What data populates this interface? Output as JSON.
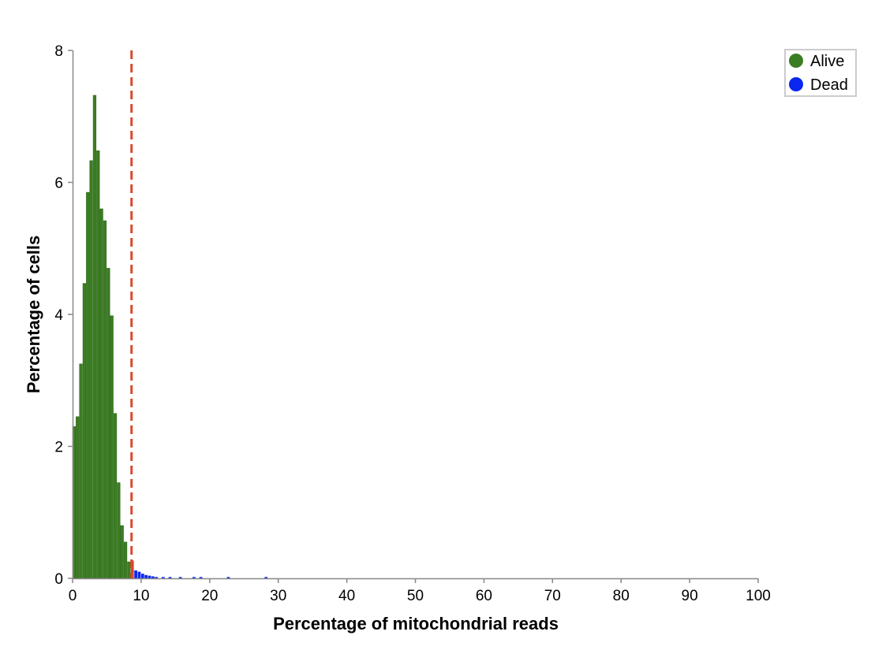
{
  "chart_data": {
    "type": "bar",
    "xlabel": "Percentage of mitochondrial reads",
    "ylabel": "Percentage of cells",
    "xlim": [
      0,
      100
    ],
    "ylim": [
      0,
      8
    ],
    "x_ticks": [
      "0",
      "10",
      "20",
      "30",
      "40",
      "50",
      "60",
      "70",
      "80",
      "90",
      "100"
    ],
    "y_ticks": [
      "0",
      "2",
      "4",
      "6",
      "8"
    ],
    "bin_width": 0.5,
    "threshold": 8.6,
    "grid": false,
    "legend_position": "top-right",
    "series": [
      {
        "name": "Alive",
        "color": "#3b7d23",
        "x": [
          0,
          0.5,
          1,
          1.5,
          2,
          2.5,
          3,
          3.5,
          4,
          4.5,
          5,
          5.5,
          6,
          6.5,
          7,
          7.5,
          8
        ],
        "values": [
          2.3,
          2.45,
          3.25,
          4.47,
          5.85,
          6.33,
          7.32,
          6.48,
          5.6,
          5.42,
          4.7,
          3.98,
          2.5,
          1.45,
          0.8,
          0.55,
          0.25
        ]
      },
      {
        "name": "Dead",
        "color": "#0a27f0",
        "x": [
          8.5,
          9,
          9.5,
          10,
          10.5,
          11,
          11.5,
          12,
          13,
          14,
          15.5,
          17.5,
          18.5,
          22.5,
          28
        ],
        "values": [
          0.27,
          0.12,
          0.1,
          0.07,
          0.05,
          0.04,
          0.03,
          0.02,
          0.02,
          0.02,
          0.02,
          0.02,
          0.02,
          0.02,
          0.02
        ]
      }
    ]
  }
}
